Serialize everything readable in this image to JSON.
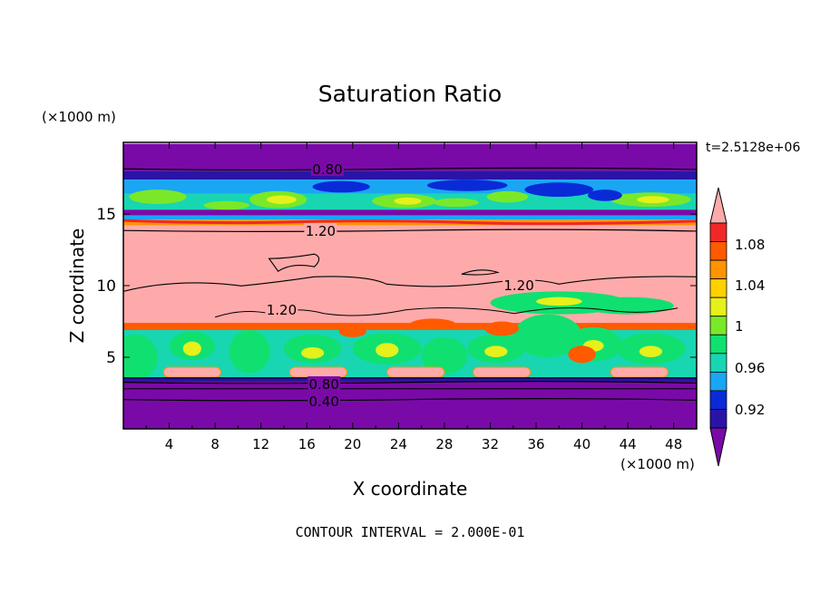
{
  "chart_data": {
    "type": "heatmap",
    "title": "Saturation Ratio",
    "xlabel": "X coordinate",
    "ylabel": "Z coordinate",
    "x_units": "(×1000 m)",
    "y_units": "(×1000 m)",
    "time_label": "t=2.5128e+06",
    "footer": "CONTOUR INTERVAL = 2.000E-01",
    "xlim": [
      0,
      50
    ],
    "ylim": [
      0,
      20
    ],
    "x_ticks": [
      "4",
      "8",
      "12",
      "16",
      "20",
      "24",
      "28",
      "32",
      "36",
      "40",
      "44",
      "48"
    ],
    "y_ticks": [
      "5",
      "10",
      "15"
    ],
    "colorbar": {
      "labels": [
        "1.08",
        "1.04",
        "1",
        "0.96",
        "0.92"
      ],
      "colors": [
        "#7a0aa8",
        "#2a14a8",
        "#0a2ad8",
        "#1aa6f2",
        "#18d6b2",
        "#10e070",
        "#7ae828",
        "#e6f01a",
        "#ffd000",
        "#ff9400",
        "#ff5a00",
        "#f02828",
        "#ffaaaa"
      ]
    },
    "contour_labels": [
      "0.80",
      "1.20",
      "1.20",
      "1.20",
      "0.80",
      "0.40"
    ],
    "bands": [
      {
        "z": [
          19.9,
          18.0
        ],
        "color": "#7a0aa8"
      },
      {
        "z": [
          18.0,
          17.4
        ],
        "color": "#2a14a8"
      },
      {
        "z": [
          17.4,
          16.4
        ],
        "color": "#1aa6f2"
      },
      {
        "z": [
          16.4,
          15.3
        ],
        "color": "#18d6b2"
      },
      {
        "z": [
          15.3,
          14.9
        ],
        "color": "#7a0aa8"
      },
      {
        "z": [
          14.9,
          14.6
        ],
        "color": "#1aa6f2"
      },
      {
        "z": [
          14.6,
          14.2
        ],
        "color": "#ff9400"
      },
      {
        "z": [
          14.2,
          7.4
        ],
        "color": "#ffaaaa"
      },
      {
        "z": [
          7.4,
          6.9
        ],
        "color": "#ff5a00"
      },
      {
        "z": [
          6.9,
          3.6
        ],
        "color": "#18d6b2"
      },
      {
        "z": [
          3.6,
          0.0
        ],
        "color": "#7a0aa8"
      }
    ]
  }
}
